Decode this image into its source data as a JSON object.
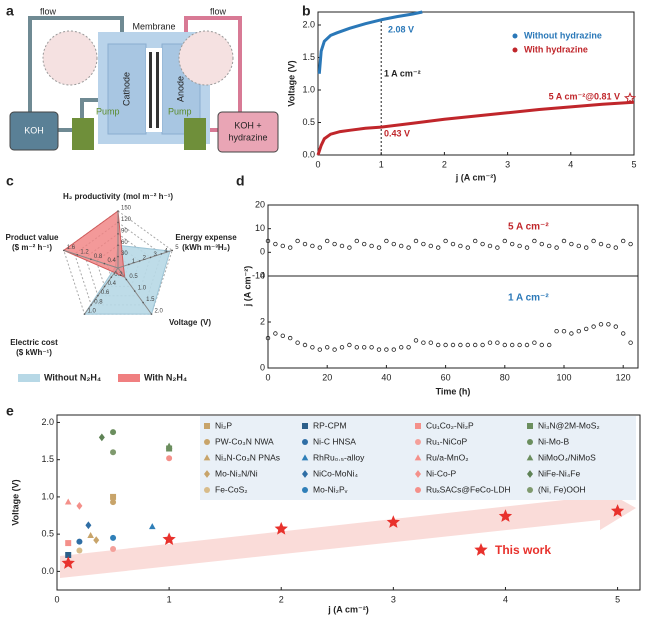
{
  "diagram": {
    "label": "a",
    "flow_left": "flow",
    "flow_right": "flow",
    "membrane": "Membrane",
    "cathode": "Cathode",
    "anode": "Anode",
    "tank_left": "KOH",
    "pump_left": "Pump",
    "pump_right": "Pump",
    "tank_right": [
      "KOH +",
      "hydrazine"
    ]
  },
  "chart_data": [
    {
      "type": "line",
      "panel_label": "b",
      "xlabel": "j (A cm⁻²)",
      "ylabel": "Voltage (V)",
      "xlim": [
        0,
        5
      ],
      "xticks": [
        0,
        1,
        2,
        3,
        4,
        5
      ],
      "ylim": [
        0,
        2.2
      ],
      "yticks": [
        {
          "value": 0,
          "label": "0.0"
        },
        0.5,
        {
          "value": 1,
          "label": "1.0"
        },
        1.5,
        {
          "value": 2,
          "label": "2.0"
        }
      ],
      "reference_x": 1,
      "series": [
        {
          "name": "Without hydrazine",
          "color": "#2a78b8",
          "x": [
            0.02,
            0.05,
            0.1,
            0.2,
            0.3,
            0.5,
            0.75,
            1,
            1.25,
            1.5,
            1.65
          ],
          "values": [
            1.25,
            1.6,
            1.75,
            1.84,
            1.88,
            1.95,
            2.02,
            2.08,
            2.13,
            2.17,
            2.2
          ]
        },
        {
          "name": "With hydrazine",
          "color": "#c0262b",
          "x": [
            0,
            0.05,
            0.1,
            0.2,
            0.35,
            0.5,
            0.75,
            1,
            1.5,
            2,
            2.5,
            3,
            3.5,
            4,
            4.5,
            5
          ],
          "values": [
            0,
            0.15,
            0.25,
            0.32,
            0.36,
            0.38,
            0.41,
            0.43,
            0.49,
            0.55,
            0.6,
            0.65,
            0.7,
            0.74,
            0.78,
            0.81
          ]
        }
      ],
      "annotations": [
        "2.08 V",
        "1 A cm⁻²",
        "0.43 V",
        "5 A cm⁻²@0.81 V"
      ]
    },
    {
      "type": "radar",
      "panel_label": "c",
      "axes": [
        {
          "name": "H₂ productivity",
          "unit": "(mol m⁻² h⁻¹)",
          "lim": [
            0,
            150
          ],
          "ticks": [
            30,
            60,
            90,
            120,
            150
          ]
        },
        {
          "name": "Energy expense",
          "unit": "(kWh m⁻³H₂)",
          "lim": [
            0,
            5
          ],
          "ticks": [
            1,
            2,
            3,
            4,
            5
          ]
        },
        {
          "name": "Voltage",
          "unit": "(V)",
          "lim": [
            0,
            2
          ],
          "ticks": [
            0.5,
            {
              "value": 1,
              "label": "1.0"
            },
            1.5,
            {
              "value": 2,
              "label": "2.0"
            }
          ]
        },
        {
          "name": "Electric cost",
          "unit": "($ kWh⁻¹)",
          "lim": [
            0,
            1
          ],
          "ticks": [
            0.2,
            0.4,
            0.6,
            0.8,
            {
              "value": 1,
              "label": "1.0"
            }
          ]
        },
        {
          "name": "Product value",
          "unit": "($ m⁻² h⁻¹)",
          "lim": [
            0,
            1.6
          ],
          "ticks": [
            0.4,
            0.8,
            1.2,
            1.6
          ]
        }
      ],
      "series": [
        {
          "name": "Without N₂H₄",
          "color": "#b7d8e6",
          "values": [
            60,
            4.8,
            2.0,
            1.0,
            0.08
          ]
        },
        {
          "name": "With N₂H₄",
          "color": "#f07f80",
          "values": [
            150,
            0.5,
            0.4,
            0.1,
            1.6
          ]
        }
      ]
    },
    {
      "type": "scatter",
      "panel_label": "d",
      "xlabel": "Time (h)",
      "ylabel": "j (A cm⁻²)",
      "xlim": [
        0,
        125
      ],
      "xticks": [
        0,
        20,
        40,
        60,
        80,
        100,
        120
      ],
      "x": [
        0,
        2.5,
        5,
        7.5,
        10,
        12.5,
        15,
        17.5,
        20,
        22.5,
        25,
        27.5,
        30,
        32.5,
        35,
        37.5,
        40,
        42.5,
        45,
        47.5,
        50,
        52.5,
        55,
        57.5,
        60,
        62.5,
        65,
        67.5,
        70,
        72.5,
        75,
        77.5,
        80,
        82.5,
        85,
        87.5,
        90,
        92.5,
        95,
        97.5,
        100,
        102.5,
        105,
        107.5,
        110,
        112.5,
        115,
        117.5,
        120,
        122.5
      ],
      "series": [
        {
          "name": "5 A cm⁻²",
          "name_color": "#c0262b",
          "color": "#222222",
          "ylim": [
            -10,
            20
          ],
          "yticks": [
            -10,
            0,
            10,
            20
          ],
          "values": [
            4.8,
            3.5,
            2.7,
            2.0,
            4.8,
            3.5,
            2.7,
            2.0,
            4.8,
            3.5,
            2.7,
            2.0,
            4.8,
            3.5,
            2.7,
            2.0,
            4.8,
            3.5,
            2.7,
            2.0,
            4.8,
            3.5,
            2.7,
            2.0,
            4.8,
            3.5,
            2.7,
            2.0,
            4.8,
            3.5,
            2.7,
            2.0,
            4.8,
            3.5,
            2.7,
            2.0,
            4.8,
            3.5,
            2.7,
            2.0,
            4.8,
            3.5,
            2.7,
            2.0,
            4.8,
            3.5,
            2.7,
            2.0,
            4.8,
            3.5
          ]
        },
        {
          "name": "1 A  cm⁻²",
          "name_color": "#2a78b8",
          "color": "#222222",
          "ylim": [
            0,
            4
          ],
          "yticks": [
            0,
            2,
            4
          ],
          "values": [
            1.3,
            1.5,
            1.4,
            1.3,
            1.1,
            1.0,
            0.9,
            0.8,
            0.9,
            0.8,
            0.9,
            1.0,
            0.9,
            0.9,
            0.9,
            0.8,
            0.8,
            0.8,
            0.9,
            0.9,
            1.2,
            1.1,
            1.1,
            1.0,
            1.0,
            1.0,
            1.0,
            1.0,
            1.0,
            1.0,
            1.1,
            1.1,
            1.0,
            1.0,
            1.0,
            1.0,
            1.1,
            1.0,
            1.0,
            1.6,
            1.6,
            1.5,
            1.6,
            1.7,
            1.8,
            1.9,
            1.9,
            1.8,
            1.5,
            1.1
          ]
        }
      ]
    },
    {
      "type": "scatter",
      "panel_label": "e",
      "xlabel": "j (A cm⁻²)",
      "ylabel": "Voltage (V)",
      "xlim": [
        0,
        5.2
      ],
      "xticks": [
        0,
        1,
        2,
        3,
        4,
        5
      ],
      "ylim": [
        -0.25,
        2.1
      ],
      "yticks": [
        {
          "value": 0,
          "label": "0.0"
        },
        0.5,
        {
          "value": 1,
          "label": "1.0"
        },
        1.5,
        {
          "value": 2,
          "label": "2.0"
        }
      ],
      "series": [
        {
          "name": "Ni₂P",
          "color": "#c8a46a",
          "marker": "square",
          "x": [
            0.5
          ],
          "values": [
            1.0
          ]
        },
        {
          "name": "PW-Co₃N NWA",
          "color": "#c8a46a",
          "marker": "circle",
          "x": [
            0.5
          ],
          "values": [
            0.93
          ]
        },
        {
          "name": "Ni₃N-Co₃N PNAs",
          "color": "#c8a46a",
          "marker": "triangle",
          "x": [
            0.3
          ],
          "values": [
            0.48
          ]
        },
        {
          "name": "Mo-Ni₃N/Ni",
          "color": "#c8a46a",
          "marker": "diamond",
          "x": [
            0.35
          ],
          "values": [
            0.42
          ]
        },
        {
          "name": "Fe-CoS₂",
          "color": "#d8bc8a",
          "marker": "circle",
          "x": [
            0.2
          ],
          "values": [
            0.28
          ]
        },
        {
          "name": "RP-CPM",
          "color": "#2c5f8a",
          "marker": "square",
          "x": [
            0.1
          ],
          "values": [
            0.22
          ]
        },
        {
          "name": "Ni-C HNSA",
          "color": "#2f6ea5",
          "marker": "circle",
          "x": [
            0.2
          ],
          "values": [
            0.4
          ]
        },
        {
          "name": "RhRu₀.₅-alloy",
          "color": "#2f7fb8",
          "marker": "triangle",
          "x": [
            0.85
          ],
          "values": [
            0.6
          ]
        },
        {
          "name": "NiCo-MoNi₄",
          "color": "#2f6ea5",
          "marker": "diamond",
          "x": [
            0.28
          ],
          "values": [
            0.62
          ]
        },
        {
          "name": "Mo-Ni₂Pᵥ",
          "color": "#2f7fb8",
          "marker": "circle",
          "x": [
            0.5
          ],
          "values": [
            0.45
          ]
        },
        {
          "name": "Cu₁Co₂-Ni₂P",
          "color": "#f4908a",
          "marker": "square",
          "x": [
            0.1
          ],
          "values": [
            0.38
          ]
        },
        {
          "name": "Ru₁-NiCoP",
          "color": "#f4a09a",
          "marker": "circle",
          "x": [
            0.5
          ],
          "values": [
            0.3
          ]
        },
        {
          "name": "Ru/a-MnO₂",
          "color": "#f4908a",
          "marker": "triangle",
          "x": [
            0.1
          ],
          "values": [
            0.93
          ]
        },
        {
          "name": "Ni-Co-P",
          "color": "#f4908a",
          "marker": "diamond",
          "x": [
            0.2
          ],
          "values": [
            0.88
          ]
        },
        {
          "name": "RuₓSACs@FeCo-LDH",
          "color": "#f4908a",
          "marker": "circle",
          "x": [
            1.0
          ],
          "values": [
            1.52
          ]
        },
        {
          "name": "Ni₃N@2M-MoS₂",
          "color": "#6b8e5e",
          "marker": "square",
          "x": [
            1.0
          ],
          "values": [
            1.65
          ]
        },
        {
          "name": "Ni-Mo-B",
          "color": "#6b8e5e",
          "marker": "circle",
          "x": [
            0.5
          ],
          "values": [
            1.87
          ]
        },
        {
          "name": "NiMoO₄/NiMoS",
          "color": "#6b8e5e",
          "marker": "triangle",
          "x": [
            1.0
          ],
          "values": [
            1.68
          ]
        },
        {
          "name": "NiFe-Ni₄Fe",
          "color": "#5e8255",
          "marker": "diamond",
          "x": [
            0.4
          ],
          "values": [
            1.8
          ]
        },
        {
          "name": "(Ni, Fe)OOH",
          "color": "#7f9a6e",
          "marker": "circle",
          "x": [
            0.5
          ],
          "values": [
            1.6
          ]
        },
        {
          "name": "This work",
          "color": "#e8312c",
          "marker": "star",
          "x": [
            0.1,
            1,
            2,
            3,
            4,
            5
          ],
          "values": [
            0.11,
            0.43,
            0.57,
            0.66,
            0.74,
            0.81
          ]
        }
      ]
    }
  ]
}
